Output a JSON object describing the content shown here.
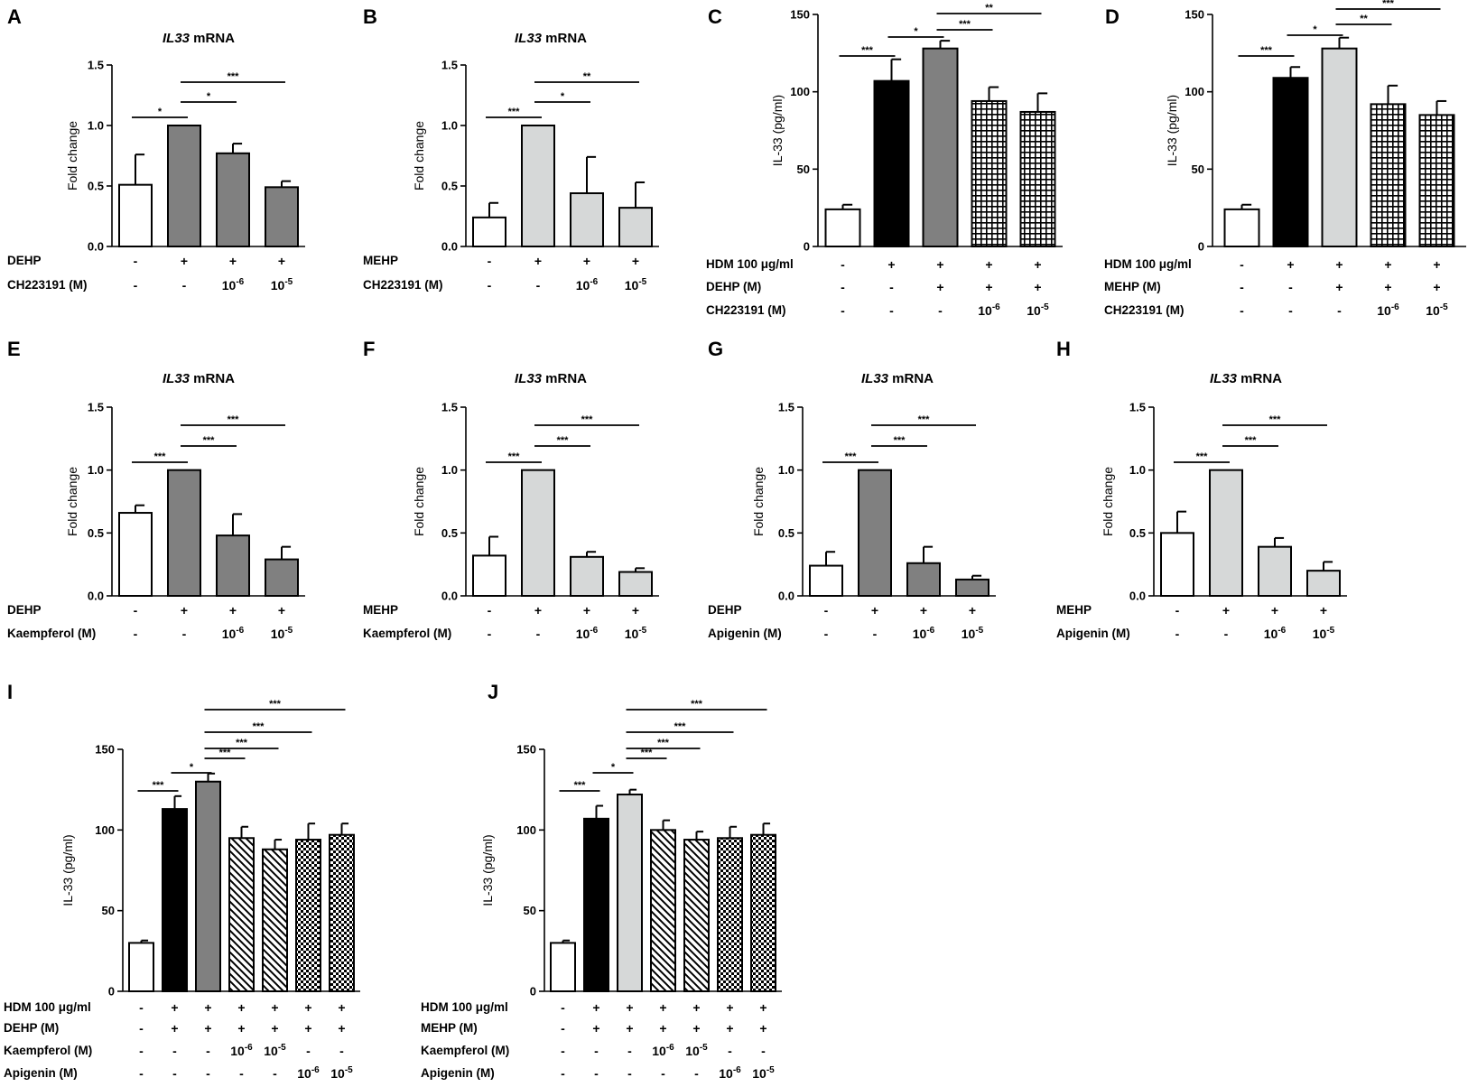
{
  "colors": {
    "white": "#ffffff",
    "dark_gray": "#808080",
    "light_gray": "#d6d8d8",
    "black": "#000000"
  },
  "chart_data": [
    {
      "panel": "A",
      "type": "bar",
      "title_italic": "IL33",
      "title_rest": " mRNA",
      "ylabel": "Fold change",
      "ylim": [
        0,
        1.5
      ],
      "yticks": [
        0.0,
        0.5,
        1.0,
        1.5
      ],
      "ytick_labels": [
        "0.0",
        "0.5",
        "1.0",
        "1.5"
      ],
      "values": [
        0.51,
        1.0,
        0.77,
        0.49
      ],
      "errors": [
        0.25,
        0.0,
        0.08,
        0.05
      ],
      "fills": [
        "white",
        "dark_gray",
        "dark_gray",
        "dark_gray"
      ],
      "rows": [
        {
          "label": "DEHP",
          "entries": [
            "-",
            "+",
            "+",
            "+"
          ]
        },
        {
          "label": "CH223191 (M)",
          "entries": [
            "-",
            "-",
            "10^-6",
            "10^-5"
          ]
        }
      ],
      "sig": [
        {
          "from": 0,
          "to": 1,
          "label": "*"
        },
        {
          "from": 1,
          "to": 2,
          "label": "*"
        },
        {
          "from": 1,
          "to": 3,
          "label": "***"
        }
      ]
    },
    {
      "panel": "B",
      "type": "bar",
      "title_italic": "IL33",
      "title_rest": " mRNA",
      "ylabel": "Fold change",
      "ylim": [
        0,
        1.5
      ],
      "yticks": [
        0.0,
        0.5,
        1.0,
        1.5
      ],
      "ytick_labels": [
        "0.0",
        "0.5",
        "1.0",
        "1.5"
      ],
      "values": [
        0.24,
        1.0,
        0.44,
        0.32
      ],
      "errors": [
        0.12,
        0.0,
        0.3,
        0.21
      ],
      "fills": [
        "white",
        "light_gray",
        "light_gray",
        "light_gray"
      ],
      "rows": [
        {
          "label": "MEHP",
          "entries": [
            "-",
            "+",
            "+",
            "+"
          ]
        },
        {
          "label": "CH223191 (M)",
          "entries": [
            "-",
            "-",
            "10^-6",
            "10^-5"
          ]
        }
      ],
      "sig": [
        {
          "from": 0,
          "to": 1,
          "label": "***"
        },
        {
          "from": 1,
          "to": 2,
          "label": "*"
        },
        {
          "from": 1,
          "to": 3,
          "label": "**"
        }
      ]
    },
    {
      "panel": "C",
      "type": "bar",
      "ylabel": "IL-33 (pg/ml)",
      "ylim": [
        0,
        150
      ],
      "yticks": [
        0,
        50,
        100,
        150
      ],
      "ytick_labels": [
        "0",
        "50",
        "100",
        "150"
      ],
      "values": [
        24,
        107,
        128,
        94,
        87
      ],
      "errors": [
        3,
        14,
        5,
        9,
        12
      ],
      "fills": [
        "white",
        "black",
        "dark_gray",
        "grid",
        "grid"
      ],
      "rows": [
        {
          "label": "HDM 100 μg/ml",
          "entries": [
            "-",
            "+",
            "+",
            "+",
            "+"
          ]
        },
        {
          "label": "DEHP (M)",
          "entries": [
            "-",
            "-",
            "+",
            "+",
            "+"
          ]
        },
        {
          "label": "CH223191 (M)",
          "entries": [
            "-",
            "-",
            "-",
            "10^-6",
            "10^-5"
          ]
        }
      ],
      "sig": [
        {
          "from": 0,
          "to": 1,
          "label": "***"
        },
        {
          "from": 1,
          "to": 2,
          "label": "*"
        },
        {
          "from": 2,
          "to": 3,
          "label": "***"
        },
        {
          "from": 2,
          "to": 4,
          "label": "**"
        }
      ]
    },
    {
      "panel": "D",
      "type": "bar",
      "ylabel": "IL-33 (pg/ml)",
      "ylim": [
        0,
        150
      ],
      "yticks": [
        0,
        50,
        100,
        150
      ],
      "ytick_labels": [
        "0",
        "50",
        "100",
        "150"
      ],
      "values": [
        24,
        109,
        128,
        92,
        85
      ],
      "errors": [
        3,
        7,
        7,
        12,
        9
      ],
      "fills": [
        "white",
        "black",
        "light_gray",
        "grid",
        "grid"
      ],
      "rows": [
        {
          "label": "HDM 100 μg/ml",
          "entries": [
            "-",
            "+",
            "+",
            "+",
            "+"
          ]
        },
        {
          "label": "MEHP (M)",
          "entries": [
            "-",
            "-",
            "+",
            "+",
            "+"
          ]
        },
        {
          "label": "CH223191 (M)",
          "entries": [
            "-",
            "-",
            "-",
            "10^-6",
            "10^-5"
          ]
        }
      ],
      "sig": [
        {
          "from": 0,
          "to": 1,
          "label": "***"
        },
        {
          "from": 1,
          "to": 2,
          "label": "*"
        },
        {
          "from": 2,
          "to": 3,
          "label": "**"
        },
        {
          "from": 2,
          "to": 4,
          "label": "***"
        }
      ]
    },
    {
      "panel": "E",
      "type": "bar",
      "title_italic": "IL33",
      "title_rest": " mRNA",
      "ylabel": "Fold change",
      "ylim": [
        0,
        1.5
      ],
      "yticks": [
        0.0,
        0.5,
        1.0,
        1.5
      ],
      "ytick_labels": [
        "0.0",
        "0.5",
        "1.0",
        "1.5"
      ],
      "values": [
        0.66,
        1.0,
        0.48,
        0.29
      ],
      "errors": [
        0.06,
        0.0,
        0.17,
        0.1
      ],
      "fills": [
        "white",
        "dark_gray",
        "dark_gray",
        "dark_gray"
      ],
      "rows": [
        {
          "label": "DEHP",
          "entries": [
            "-",
            "+",
            "+",
            "+"
          ]
        },
        {
          "label": "Kaempferol (M)",
          "entries": [
            "-",
            "-",
            "10^-6",
            "10^-5"
          ]
        }
      ],
      "sig": [
        {
          "from": 0,
          "to": 1,
          "label": "***"
        },
        {
          "from": 1,
          "to": 2,
          "label": "***"
        },
        {
          "from": 1,
          "to": 3,
          "label": "***"
        }
      ]
    },
    {
      "panel": "F",
      "type": "bar",
      "title_italic": "IL33",
      "title_rest": " mRNA",
      "ylabel": "Fold change",
      "ylim": [
        0,
        1.5
      ],
      "yticks": [
        0.0,
        0.5,
        1.0,
        1.5
      ],
      "ytick_labels": [
        "0.0",
        "0.5",
        "1.0",
        "1.5"
      ],
      "values": [
        0.32,
        1.0,
        0.31,
        0.19
      ],
      "errors": [
        0.15,
        0.0,
        0.04,
        0.03
      ],
      "fills": [
        "white",
        "light_gray",
        "light_gray",
        "light_gray"
      ],
      "rows": [
        {
          "label": "MEHP",
          "entries": [
            "-",
            "+",
            "+",
            "+"
          ]
        },
        {
          "label": "Kaempferol (M)",
          "entries": [
            "-",
            "-",
            "10^-6",
            "10^-5"
          ]
        }
      ],
      "sig": [
        {
          "from": 0,
          "to": 1,
          "label": "***"
        },
        {
          "from": 1,
          "to": 2,
          "label": "***"
        },
        {
          "from": 1,
          "to": 3,
          "label": "***"
        }
      ]
    },
    {
      "panel": "G",
      "type": "bar",
      "title_italic": "IL33",
      "title_rest": " mRNA",
      "ylabel": "Fold change",
      "ylim": [
        0,
        1.5
      ],
      "yticks": [
        0.0,
        0.5,
        1.0,
        1.5
      ],
      "ytick_labels": [
        "0.0",
        "0.5",
        "1.0",
        "1.5"
      ],
      "values": [
        0.24,
        1.0,
        0.26,
        0.13
      ],
      "errors": [
        0.11,
        0.0,
        0.13,
        0.03
      ],
      "fills": [
        "white",
        "dark_gray",
        "dark_gray",
        "dark_gray"
      ],
      "rows": [
        {
          "label": "DEHP",
          "entries": [
            "-",
            "+",
            "+",
            "+"
          ]
        },
        {
          "label": "Apigenin (M)",
          "entries": [
            "-",
            "-",
            "10^-6",
            "10^-5"
          ]
        }
      ],
      "sig": [
        {
          "from": 0,
          "to": 1,
          "label": "***"
        },
        {
          "from": 1,
          "to": 2,
          "label": "***"
        },
        {
          "from": 1,
          "to": 3,
          "label": "***"
        }
      ]
    },
    {
      "panel": "H",
      "type": "bar",
      "title_italic": "IL33",
      "title_rest": " mRNA",
      "ylabel": "Fold change",
      "ylim": [
        0,
        1.5
      ],
      "yticks": [
        0.0,
        0.5,
        1.0,
        1.5
      ],
      "ytick_labels": [
        "0.0",
        "0.5",
        "1.0",
        "1.5"
      ],
      "values": [
        0.5,
        1.0,
        0.39,
        0.2
      ],
      "errors": [
        0.17,
        0.0,
        0.07,
        0.07
      ],
      "fills": [
        "white",
        "light_gray",
        "light_gray",
        "light_gray"
      ],
      "rows": [
        {
          "label": "MEHP",
          "entries": [
            "-",
            "+",
            "+",
            "+"
          ]
        },
        {
          "label": "Apigenin (M)",
          "entries": [
            "-",
            "-",
            "10^-6",
            "10^-5"
          ]
        }
      ],
      "sig": [
        {
          "from": 0,
          "to": 1,
          "label": "***"
        },
        {
          "from": 1,
          "to": 2,
          "label": "***"
        },
        {
          "from": 1,
          "to": 3,
          "label": "***"
        }
      ]
    },
    {
      "panel": "I",
      "type": "bar",
      "ylabel": "IL-33 (pg/ml)",
      "ylim": [
        0,
        150
      ],
      "yticks": [
        0,
        50,
        100,
        150
      ],
      "ytick_labels": [
        "0",
        "50",
        "100",
        "150"
      ],
      "values": [
        30,
        113,
        130,
        95,
        88,
        94,
        97
      ],
      "errors": [
        1.5,
        8,
        5,
        7,
        6,
        10,
        7
      ],
      "fills": [
        "white",
        "black",
        "dark_gray",
        "hatch",
        "hatch",
        "checker",
        "checker"
      ],
      "rows": [
        {
          "label": "HDM 100 μg/ml",
          "entries": [
            "-",
            "+",
            "+",
            "+",
            "+",
            "+",
            "+"
          ]
        },
        {
          "label": "DEHP (M)",
          "entries": [
            "-",
            "+",
            "+",
            "+",
            "+",
            "+",
            "+"
          ]
        },
        {
          "label": "Kaempferol (M)",
          "entries": [
            "-",
            "-",
            "-",
            "10^-6",
            "10^-5",
            "-",
            "-"
          ]
        },
        {
          "label": "Apigenin (M)",
          "entries": [
            "-",
            "-",
            "-",
            "-",
            "-",
            "10^-6",
            "10^-5"
          ]
        }
      ],
      "sig": [
        {
          "from": 0,
          "to": 1,
          "label": "***"
        },
        {
          "from": 1,
          "to": 2,
          "label": "*"
        },
        {
          "from": 2,
          "to": 3,
          "label": "***"
        },
        {
          "from": 2,
          "to": 4,
          "label": "***"
        },
        {
          "from": 2,
          "to": 5,
          "label": "***"
        },
        {
          "from": 2,
          "to": 6,
          "label": "***"
        }
      ]
    },
    {
      "panel": "J",
      "type": "bar",
      "ylabel": "IL-33 (pg/ml)",
      "ylim": [
        0,
        150
      ],
      "yticks": [
        0,
        50,
        100,
        150
      ],
      "ytick_labels": [
        "0",
        "50",
        "100",
        "150"
      ],
      "values": [
        30,
        107,
        122,
        100,
        94,
        95,
        97
      ],
      "errors": [
        1.5,
        8,
        3,
        6,
        5,
        7,
        7
      ],
      "fills": [
        "white",
        "black",
        "light_gray",
        "hatch",
        "hatch",
        "checker",
        "checker"
      ],
      "rows": [
        {
          "label": "HDM 100 μg/ml",
          "entries": [
            "-",
            "+",
            "+",
            "+",
            "+",
            "+",
            "+"
          ]
        },
        {
          "label": "MEHP (M)",
          "entries": [
            "-",
            "+",
            "+",
            "+",
            "+",
            "+",
            "+"
          ]
        },
        {
          "label": "Kaempferol (M)",
          "entries": [
            "-",
            "-",
            "-",
            "10^-6",
            "10^-5",
            "-",
            "-"
          ]
        },
        {
          "label": "Apigenin (M)",
          "entries": [
            "-",
            "-",
            "-",
            "-",
            "-",
            "10^-6",
            "10^-5"
          ]
        }
      ],
      "sig": [
        {
          "from": 0,
          "to": 1,
          "label": "***"
        },
        {
          "from": 1,
          "to": 2,
          "label": "*"
        },
        {
          "from": 2,
          "to": 3,
          "label": "***"
        },
        {
          "from": 2,
          "to": 4,
          "label": "***"
        },
        {
          "from": 2,
          "to": 5,
          "label": "***"
        },
        {
          "from": 2,
          "to": 6,
          "label": "***"
        }
      ]
    }
  ]
}
